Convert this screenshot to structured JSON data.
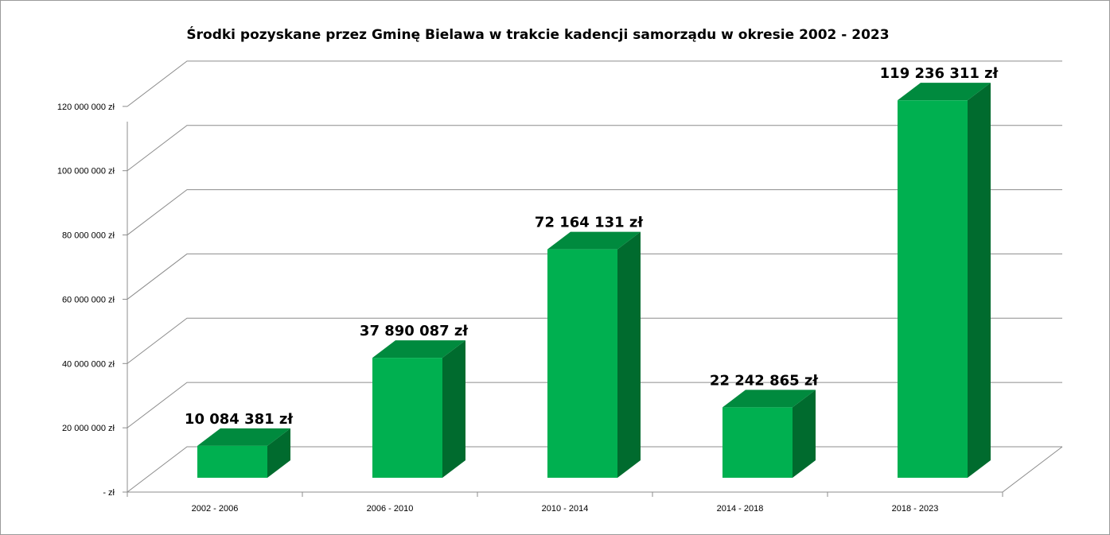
{
  "colors": {
    "bar_front": "#00b050",
    "bar_top": "#008a3e",
    "bar_side": "#006b2e",
    "grid": "#8c8c8c",
    "axis": "#8c8c8c"
  },
  "chart_data": {
    "type": "bar",
    "title": "Środki pozyskane  przez Gminę  Bielawa w trakcie kadencji samorządu  w okresie 2002 - 2023",
    "categories": [
      "2002 - 2006",
      "2006 - 2010",
      "2010 - 2014",
      "2014 - 2018",
      "2018 - 2023"
    ],
    "values": [
      10084381,
      37890087,
      72164131,
      22242865,
      119236311
    ],
    "data_labels": [
      "10 084 381 zł",
      "37 890 087 zł",
      "72 164 131 zł",
      "22 242 865 zł",
      "119 236 311 zł"
    ],
    "ytick_values": [
      0,
      20000000,
      40000000,
      60000000,
      80000000,
      100000000,
      120000000
    ],
    "ytick_labels": [
      "-  zł",
      "20 000 000 zł",
      "40 000 000 zł",
      "60 000 000 zł",
      "80 000 000 zł",
      "100 000 000 zł",
      "120 000 000 zł"
    ],
    "ylim": [
      0,
      140000000
    ],
    "xlabel": "",
    "ylabel": "",
    "grid": true,
    "style": "3d-column"
  }
}
